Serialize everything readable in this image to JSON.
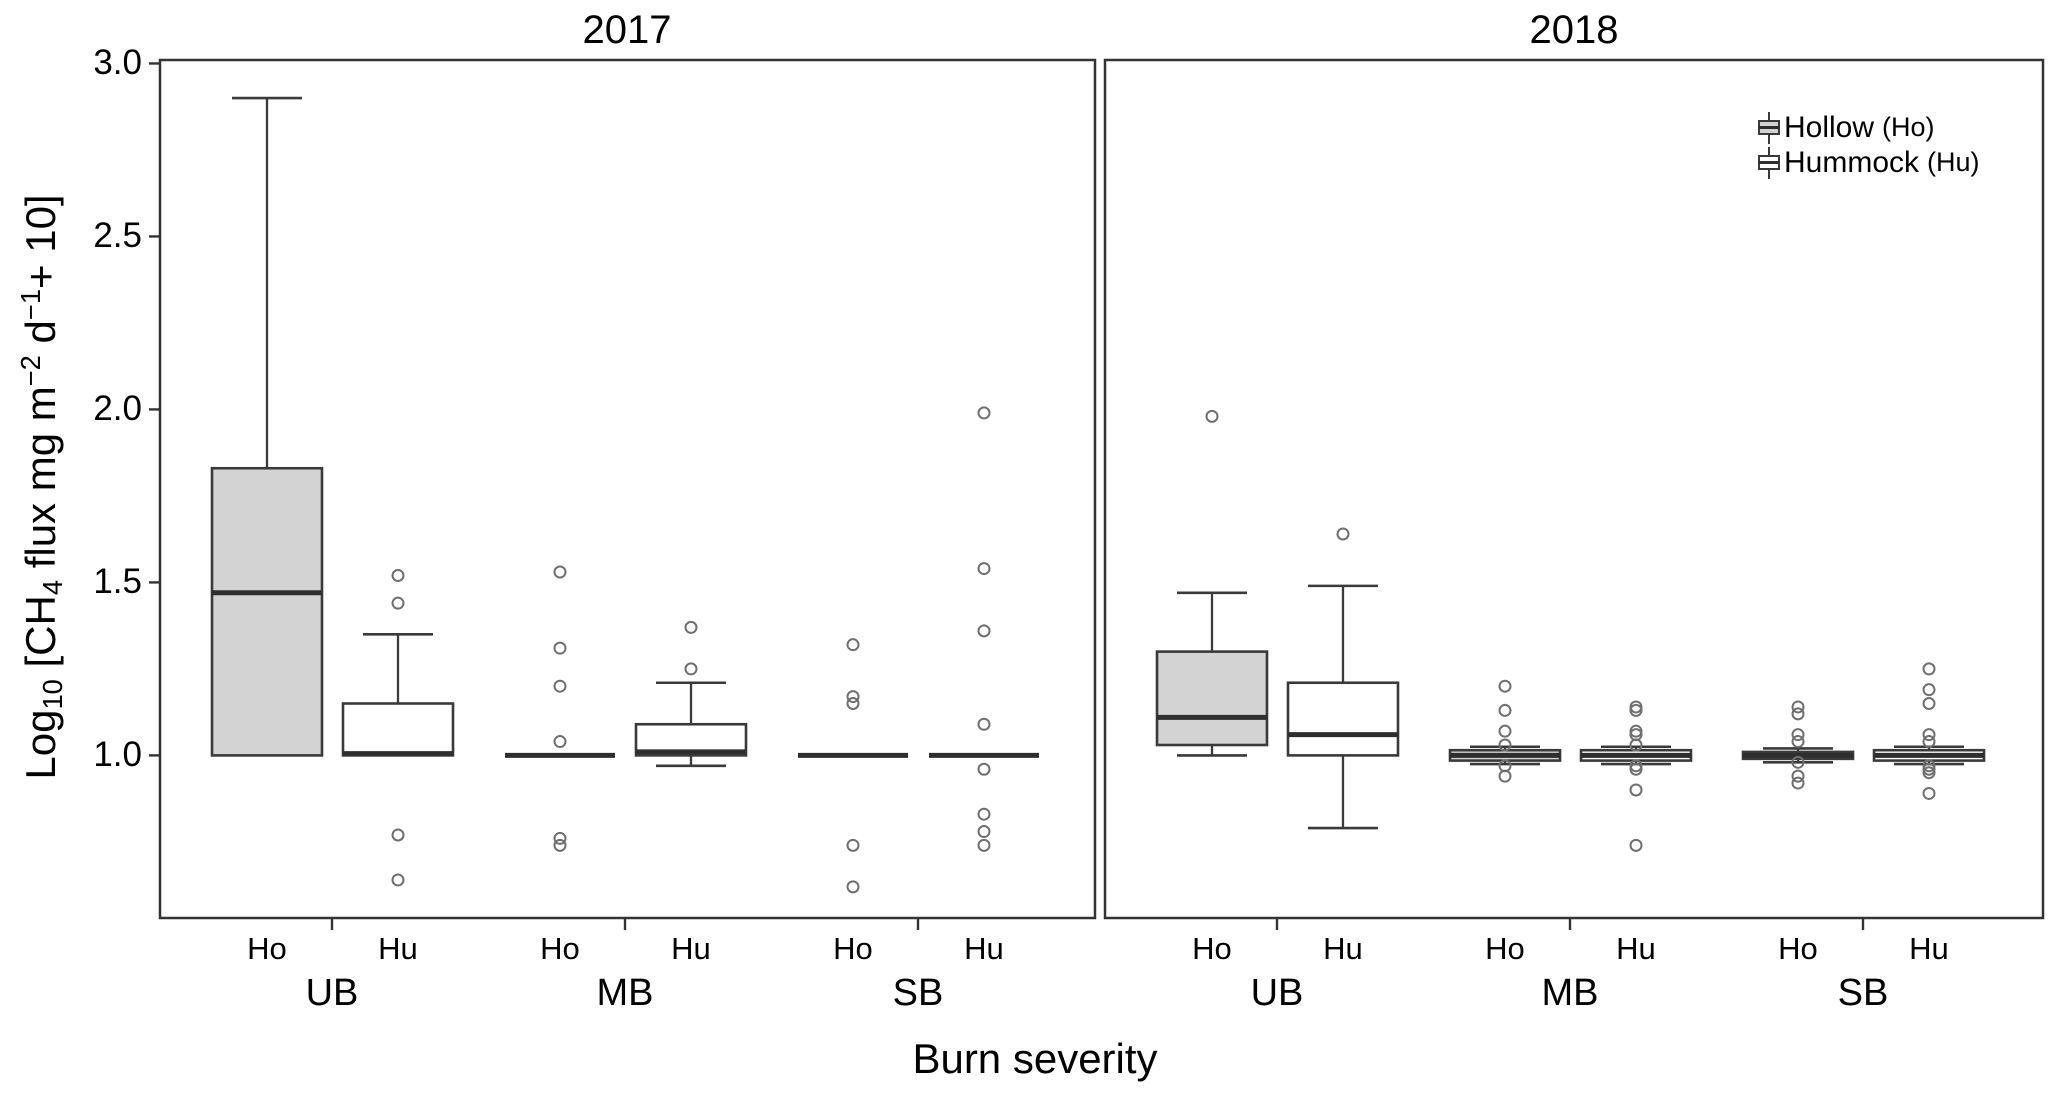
{
  "figure": {
    "background": "#ffffff"
  },
  "styles": {
    "panel_border": "#333333",
    "box_stroke": "#3a3a3a",
    "median_color": "#2e2e2e",
    "whisker_color": "#3a3a3a",
    "outlier_color": "#6f6f6f",
    "tick_color": "#333333",
    "text_color": "#000000",
    "hollow_fill": "#d3d3d3",
    "hummock_fill": "#ffffff"
  },
  "chart_data": {
    "type": "boxplot",
    "title": "",
    "x_axis": {
      "title": "Burn severity",
      "groups": [
        "UB",
        "MB",
        "SB"
      ],
      "subgroups": [
        "Ho",
        "Hu"
      ]
    },
    "y_axis": {
      "label_plain": "Log10 [CH4 flux mg m−2 d−1 + 10]",
      "label_parts": [
        {
          "t": "Log"
        },
        {
          "sub": "10"
        },
        {
          "t": " [CH"
        },
        {
          "sub": "4"
        },
        {
          "t": " flux mg  m"
        },
        {
          "sup": "−2"
        },
        {
          "t": " d"
        },
        {
          "sup": "−1"
        },
        {
          "t": "+ 10]"
        }
      ],
      "ticks": [
        3.0,
        2.5,
        2.0,
        1.5,
        1.0
      ],
      "tick_labels": [
        "3.0",
        "2.5",
        "2.0",
        "1.5",
        "1.0"
      ],
      "ylim": [
        0.53,
        3.01
      ],
      "grid": false
    },
    "legend": {
      "position": "top-right",
      "items": [
        {
          "name": "Hollow",
          "code": "(Ho)",
          "fill": "#d3d3d3"
        },
        {
          "name": "Hummock",
          "code": "(Hu)",
          "fill": "#ffffff"
        }
      ]
    },
    "panels": [
      {
        "title": "2017",
        "groups": [
          {
            "label": "UB",
            "boxes": [
              {
                "subgroup": "Ho",
                "series": "Hollow",
                "q1": 1.0,
                "median": 1.47,
                "q3": 1.83,
                "whisker_low": 1.0,
                "whisker_high": 2.9,
                "outliers": []
              },
              {
                "subgroup": "Hu",
                "series": "Hummock",
                "q1": 1.0,
                "median": 1.005,
                "q3": 1.15,
                "whisker_low": 1.0,
                "whisker_high": 1.35,
                "outliers": [
                  1.52,
                  1.44,
                  0.77,
                  0.64
                ]
              }
            ]
          },
          {
            "label": "MB",
            "boxes": [
              {
                "subgroup": "Ho",
                "series": "Hollow",
                "q1": 1.0,
                "median": 1.0,
                "q3": 1.0,
                "whisker_low": 1.0,
                "whisker_high": 1.0,
                "outliers": [
                  1.53,
                  1.31,
                  1.2,
                  1.04,
                  0.76,
                  0.74
                ]
              },
              {
                "subgroup": "Hu",
                "series": "Hummock",
                "q1": 1.0,
                "median": 1.01,
                "q3": 1.09,
                "whisker_low": 0.97,
                "whisker_high": 1.21,
                "outliers": [
                  1.37,
                  1.25
                ]
              }
            ]
          },
          {
            "label": "SB",
            "boxes": [
              {
                "subgroup": "Ho",
                "series": "Hollow",
                "q1": 1.0,
                "median": 1.0,
                "q3": 1.0,
                "whisker_low": 1.0,
                "whisker_high": 1.0,
                "outliers": [
                  1.32,
                  1.17,
                  1.15,
                  0.74,
                  0.62
                ]
              },
              {
                "subgroup": "Hu",
                "series": "Hummock",
                "q1": 1.0,
                "median": 1.0,
                "q3": 1.0,
                "whisker_low": 1.0,
                "whisker_high": 1.0,
                "outliers": [
                  1.99,
                  1.54,
                  1.36,
                  1.09,
                  0.96,
                  0.83,
                  0.78,
                  0.74
                ]
              }
            ]
          }
        ]
      },
      {
        "title": "2018",
        "groups": [
          {
            "label": "UB",
            "boxes": [
              {
                "subgroup": "Ho",
                "series": "Hollow",
                "q1": 1.03,
                "median": 1.11,
                "q3": 1.3,
                "whisker_low": 1.0,
                "whisker_high": 1.47,
                "outliers": [
                  1.98
                ]
              },
              {
                "subgroup": "Hu",
                "series": "Hummock",
                "q1": 1.0,
                "median": 1.06,
                "q3": 1.21,
                "whisker_low": 0.79,
                "whisker_high": 1.49,
                "outliers": [
                  1.64
                ]
              }
            ]
          },
          {
            "label": "MB",
            "boxes": [
              {
                "subgroup": "Ho",
                "series": "Hollow",
                "q1": 0.985,
                "median": 1.0,
                "q3": 1.015,
                "whisker_low": 0.975,
                "whisker_high": 1.025,
                "outliers": [
                  1.2,
                  1.13,
                  1.07,
                  1.03,
                  0.97,
                  0.94
                ]
              },
              {
                "subgroup": "Hu",
                "series": "Hummock",
                "q1": 0.985,
                "median": 1.0,
                "q3": 1.015,
                "whisker_low": 0.975,
                "whisker_high": 1.025,
                "outliers": [
                  1.14,
                  1.13,
                  1.07,
                  1.06,
                  1.03,
                  0.97,
                  0.96,
                  0.9,
                  0.74
                ]
              }
            ]
          },
          {
            "label": "SB",
            "boxes": [
              {
                "subgroup": "Ho",
                "series": "Hollow",
                "q1": 0.99,
                "median": 1.0,
                "q3": 1.01,
                "whisker_low": 0.98,
                "whisker_high": 1.02,
                "outliers": [
                  1.14,
                  1.12,
                  1.06,
                  1.04,
                  0.98,
                  0.94,
                  0.92
                ]
              },
              {
                "subgroup": "Hu",
                "series": "Hummock",
                "q1": 0.985,
                "median": 1.0,
                "q3": 1.015,
                "whisker_low": 0.975,
                "whisker_high": 1.025,
                "outliers": [
                  1.25,
                  1.19,
                  1.15,
                  1.06,
                  1.04,
                  0.97,
                  0.96,
                  0.95,
                  0.89
                ]
              }
            ]
          }
        ]
      }
    ]
  }
}
